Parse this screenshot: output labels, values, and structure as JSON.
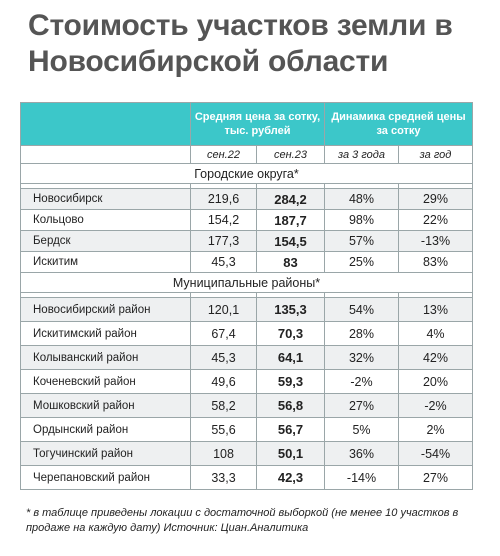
{
  "title": "Стоимость участков земли в Новосибирской области",
  "header": {
    "price_label": "Средняя цена за сотку, тыс. рублей",
    "dynamics_label": "Динамика средней цены за сотку",
    "sub_cols": [
      "сен.22",
      "сен.23",
      "за 3 года",
      "за год"
    ]
  },
  "sections": [
    {
      "label": "Городские округа*",
      "rows": [
        {
          "name": "Новосибирск",
          "sep22": "219,6",
          "sep23": "284,2",
          "y3": "48%",
          "y1": "29%"
        },
        {
          "name": "Кольцово",
          "sep22": "154,2",
          "sep23": "187,7",
          "y3": "98%",
          "y1": "22%"
        },
        {
          "name": "Бердск",
          "sep22": "177,3",
          "sep23": "154,5",
          "y3": "57%",
          "y1": "-13%"
        },
        {
          "name": "Искитим",
          "sep22": "45,3",
          "sep23": "83",
          "y3": "25%",
          "y1": "83%"
        }
      ]
    },
    {
      "label": "Муниципальные районы*",
      "rows": [
        {
          "name": "Новосибирский район",
          "sep22": "120,1",
          "sep23": "135,3",
          "y3": "54%",
          "y1": "13%"
        },
        {
          "name": "Искитимский район",
          "sep22": "67,4",
          "sep23": "70,3",
          "y3": "28%",
          "y1": "4%"
        },
        {
          "name": "Колыванский район",
          "sep22": "45,3",
          "sep23": "64,1",
          "y3": "32%",
          "y1": "42%"
        },
        {
          "name": "Коченевский район",
          "sep22": "49,6",
          "sep23": "59,3",
          "y3": "-2%",
          "y1": "20%"
        },
        {
          "name": "Мошковский район",
          "sep22": "58,2",
          "sep23": "56,8",
          "y3": "27%",
          "y1": "-2%"
        },
        {
          "name": "Ордынский район",
          "sep22": "55,6",
          "sep23": "56,7",
          "y3": "5%",
          "y1": "2%"
        },
        {
          "name": "Тогучинский район",
          "sep22": "108",
          "sep23": "50,1",
          "y3": "36%",
          "y1": "-54%"
        },
        {
          "name": "Черепановский район",
          "sep22": "33,3",
          "sep23": "42,3",
          "y3": "-14%",
          "y1": "27%"
        }
      ]
    }
  ],
  "footnote": "* в таблице приведены локации с достаточной выборкой (не менее 10 участков в продаже на каждую дату) Источник: Циан.Аналитика"
}
